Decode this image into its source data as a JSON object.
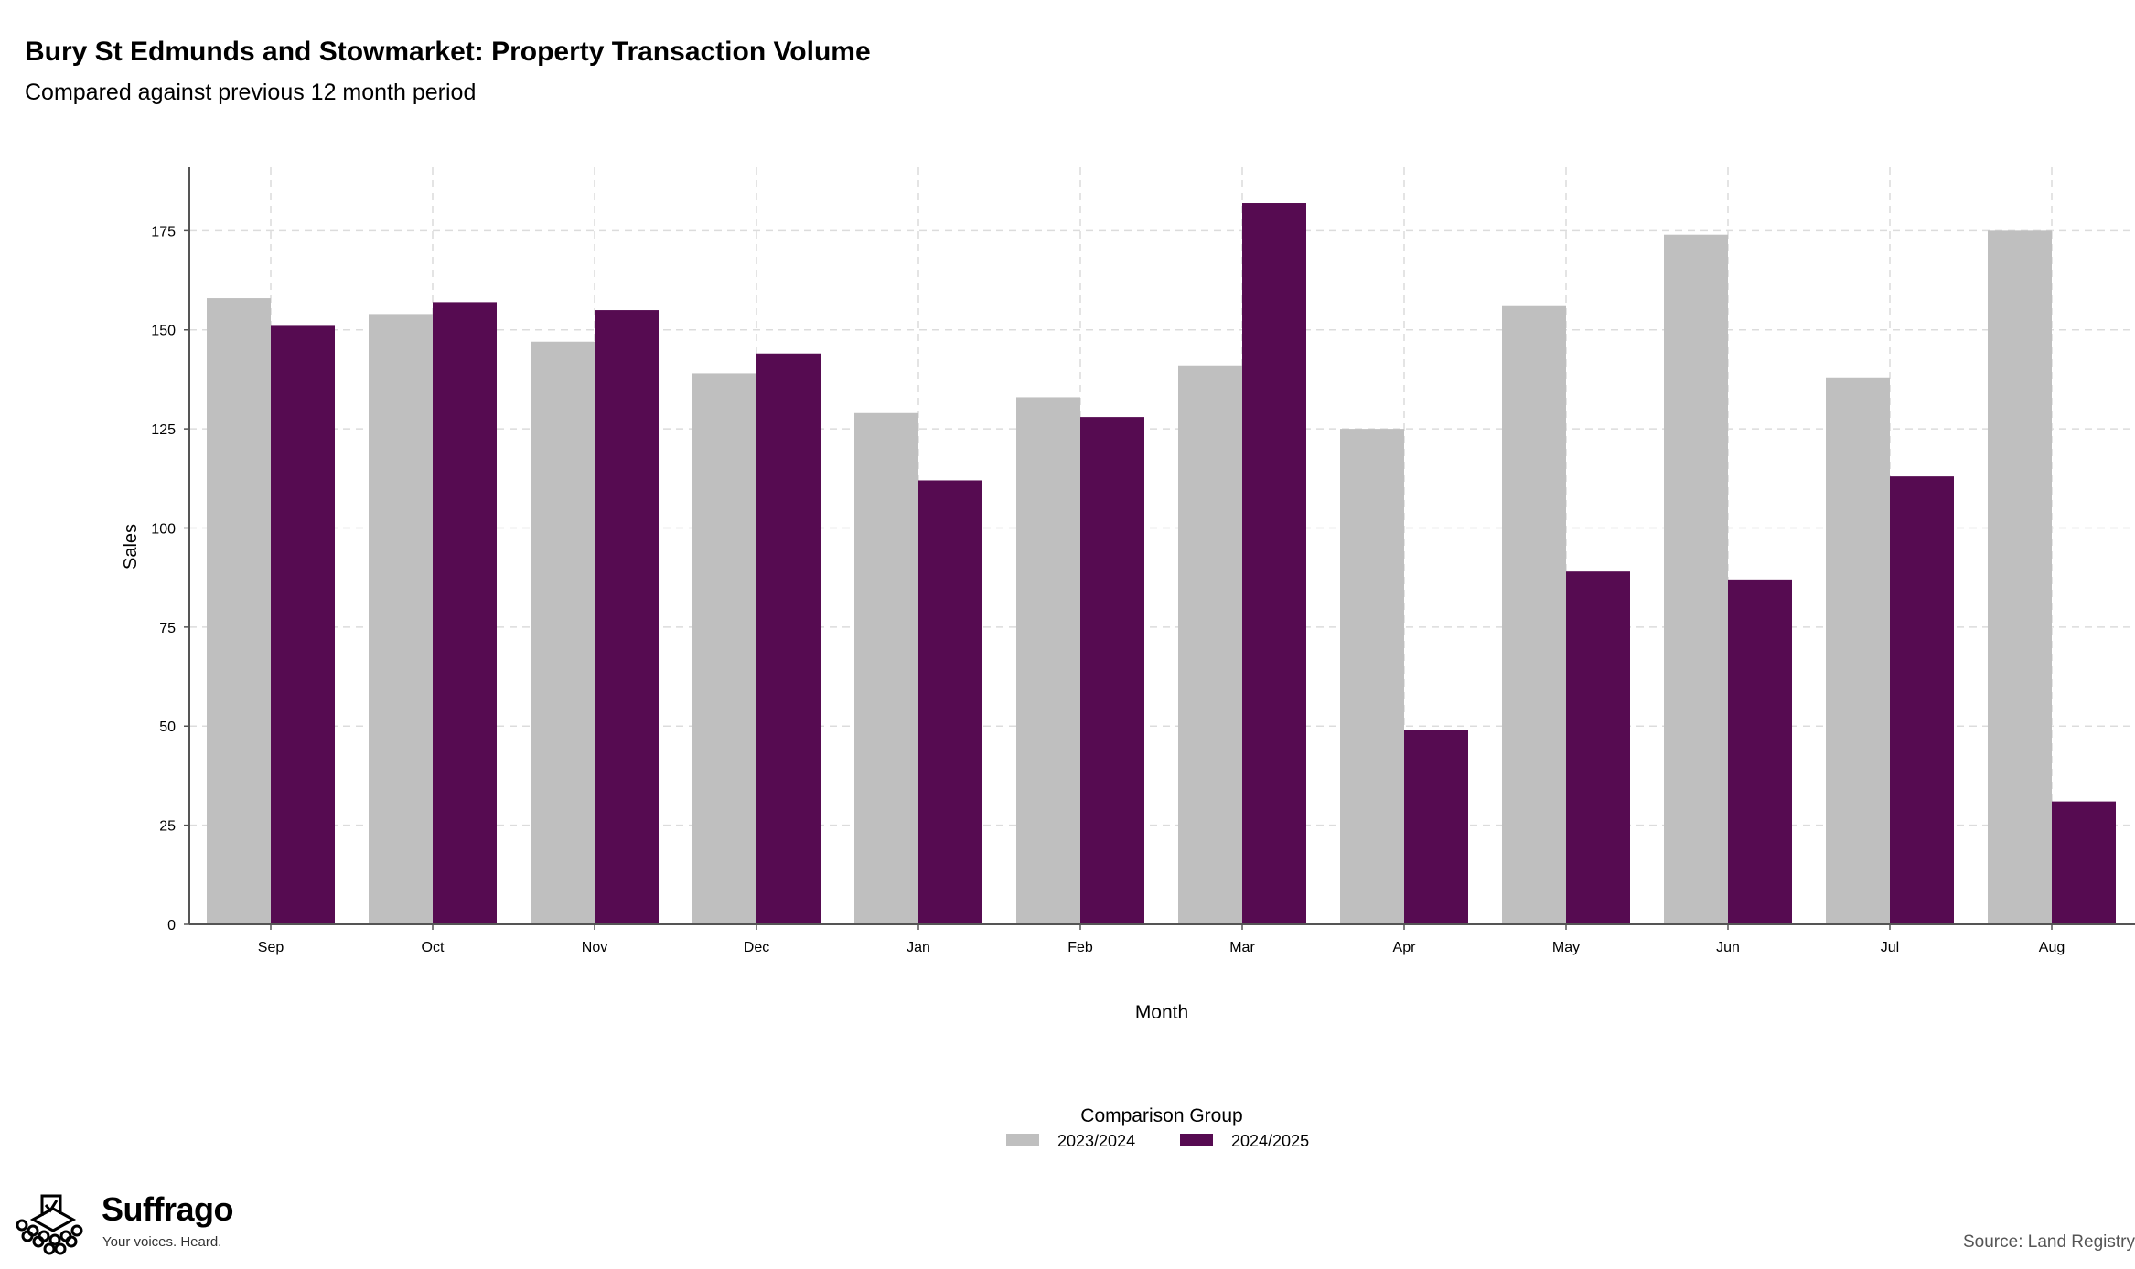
{
  "header": {
    "title": "Bury St Edmunds and Stowmarket: Property Transaction Volume",
    "subtitle": "Compared against previous 12 month period"
  },
  "chart_data": {
    "type": "bar",
    "title": "Bury St Edmunds and Stowmarket: Property Transaction Volume",
    "subtitle": "Compared against previous 12 month period",
    "xlabel": "Month",
    "ylabel": "Sales",
    "categories": [
      "Sep",
      "Oct",
      "Nov",
      "Dec",
      "Jan",
      "Feb",
      "Mar",
      "Apr",
      "May",
      "Jun",
      "Jul",
      "Aug"
    ],
    "ylim": [
      0,
      191
    ],
    "yticks": [
      0,
      25,
      50,
      75,
      100,
      125,
      150,
      175
    ],
    "grid": true,
    "legend_title": "Comparison Group",
    "legend_position": "bottom",
    "series": [
      {
        "name": "2023/2024",
        "color": "#bfbfbf",
        "values": [
          158,
          154,
          147,
          139,
          129,
          133,
          141,
          125,
          156,
          174,
          138,
          175
        ]
      },
      {
        "name": "2024/2025",
        "color": "#560b51",
        "values": [
          151,
          157,
          155,
          144,
          112,
          128,
          182,
          49,
          89,
          87,
          113,
          31
        ]
      }
    ]
  },
  "branding": {
    "logo_name": "Suffrago",
    "logo_tagline": "Your voices. Heard.",
    "logo_icon": "ballot-box-icon"
  },
  "footer": {
    "source": "Source: Land Registry"
  }
}
